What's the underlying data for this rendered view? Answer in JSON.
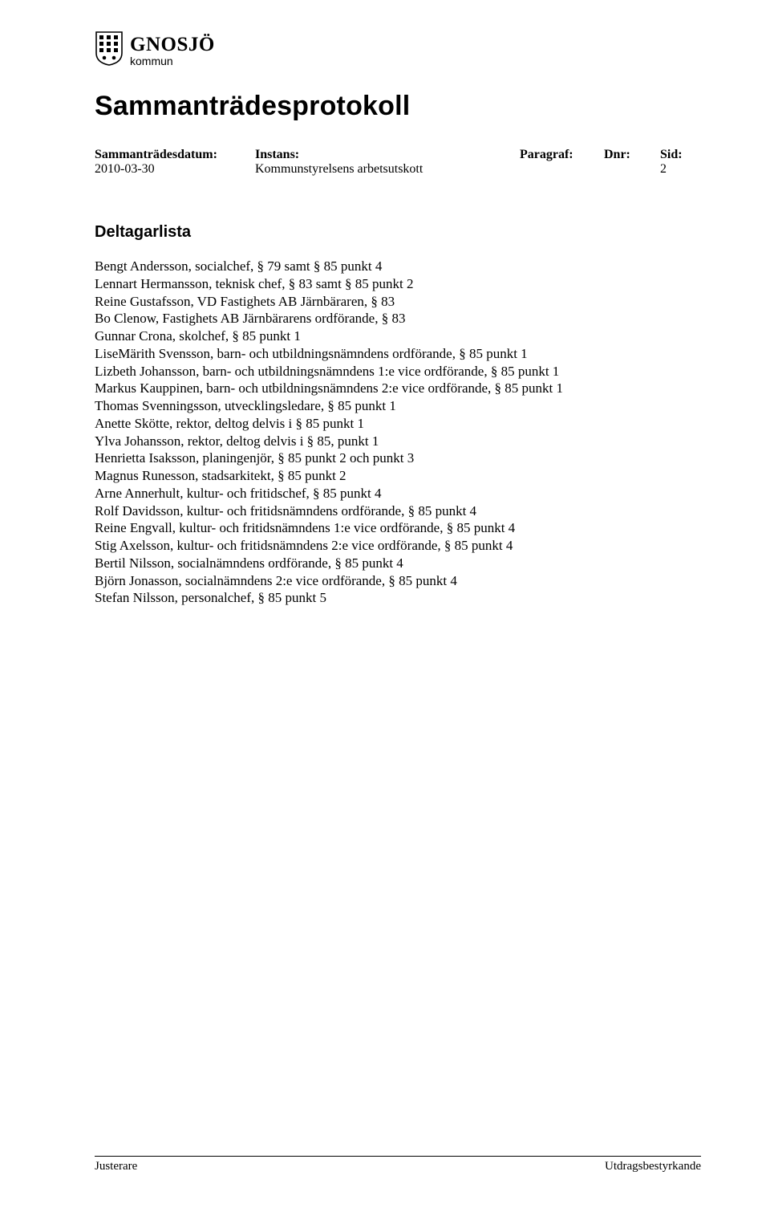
{
  "logo": {
    "main": "GNOSJÖ",
    "sub": "kommun"
  },
  "doc_title": "Sammanträdesprotokoll",
  "meta": {
    "labels": {
      "date": "Sammanträdesdatum:",
      "instans": "Instans:",
      "paragraf": "Paragraf:",
      "dnr": "Dnr:",
      "sid": "Sid:"
    },
    "values": {
      "date": "2010-03-30",
      "instans": "Kommunstyrelsens arbetsutskott",
      "paragraf": "",
      "dnr": "",
      "sid": "2"
    }
  },
  "section_title": "Deltagarlista",
  "participants": [
    "Bengt Andersson, socialchef, § 79 samt § 85 punkt 4",
    "Lennart Hermansson, teknisk chef, § 83 samt § 85 punkt 2",
    "Reine Gustafsson, VD Fastighets AB Järnbäraren, § 83",
    "Bo Clenow, Fastighets AB Järnbärarens ordförande, § 83",
    "Gunnar Crona, skolchef, § 85 punkt 1",
    "LiseMärith Svensson, barn- och utbildningsnämndens ordförande, § 85 punkt 1",
    "Lizbeth Johansson, barn- och utbildningsnämndens 1:e vice ordförande, § 85 punkt 1",
    "Markus Kauppinen, barn- och utbildningsnämndens 2:e vice ordförande, § 85 punkt 1",
    "Thomas Svenningsson, utvecklingsledare, § 85 punkt 1",
    "Anette Skötte, rektor, deltog delvis i § 85 punkt 1",
    "Ylva Johansson, rektor, deltog delvis i § 85, punkt 1",
    "Henrietta Isaksson, planingenjör, § 85 punkt 2 och punkt 3",
    "Magnus Runesson, stadsarkitekt, § 85 punkt 2",
    "Arne Annerhult, kultur- och fritidschef, § 85 punkt 4",
    "Rolf Davidsson, kultur- och fritidsnämndens ordförande, § 85 punkt 4",
    "Reine Engvall, kultur- och fritidsnämndens 1:e vice ordförande, § 85 punkt 4",
    "Stig Axelsson, kultur- och fritidsnämndens 2:e vice ordförande, § 85 punkt 4",
    "Bertil Nilsson, socialnämndens ordförande, § 85 punkt 4",
    "Björn Jonasson, socialnämndens 2:e vice ordförande, § 85 punkt 4",
    "Stefan Nilsson, personalchef, § 85 punkt 5"
  ],
  "footer": {
    "left": "Justerare",
    "right": "Utdragsbestyrkande"
  }
}
